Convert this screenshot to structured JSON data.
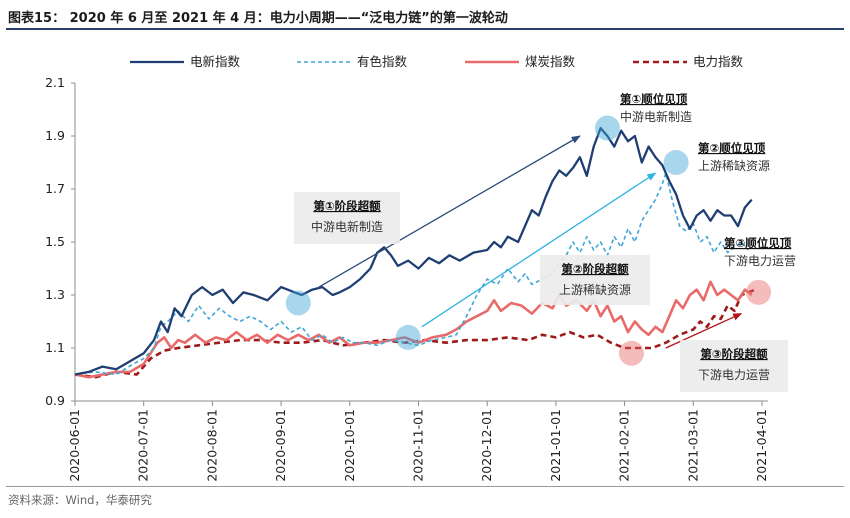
{
  "header": {
    "title": "图表15：  2020 年 6 月至 2021 年 4 月：电力小周期——“泛电力链”的第一波轮动"
  },
  "source": "资料来源：Wind，华泰研究",
  "colors": {
    "electric_new": "#1f3f73",
    "nonferrous": "#3fa7d6",
    "coal": "#e96a6a",
    "power": "#9e1b1b",
    "arrow_blue_dark": "#2d4b7a",
    "arrow_blue_light": "#2fb3e0",
    "arrow_red": "#b3121a"
  },
  "chart_data": {
    "type": "line",
    "title": "2020 年 6 月至 2021 年 4 月：电力小周期——“泛电力链”的第一波轮动",
    "xlabel": "",
    "ylabel": "",
    "ylim": [
      0.9,
      2.1
    ],
    "y_ticks": [
      "0.9",
      "1.1",
      "1.3",
      "1.5",
      "1.7",
      "1.9",
      "2.1"
    ],
    "x_ticks": [
      "2020-06-01",
      "2020-07-01",
      "2020-08-01",
      "2020-09-01",
      "2020-10-01",
      "2020-11-01",
      "2020-12-01",
      "2021-01-01",
      "2021-02-01",
      "2021-03-01",
      "2021-04-01"
    ],
    "legend_position": "top",
    "series": [
      {
        "name": "电新指数",
        "style": "solid",
        "color_key": "electric_new",
        "points": [
          [
            0.0,
            1.0
          ],
          [
            0.2,
            1.01
          ],
          [
            0.4,
            1.03
          ],
          [
            0.6,
            1.02
          ],
          [
            0.8,
            1.05
          ],
          [
            1.0,
            1.08
          ],
          [
            1.15,
            1.13
          ],
          [
            1.25,
            1.2
          ],
          [
            1.35,
            1.16
          ],
          [
            1.45,
            1.25
          ],
          [
            1.55,
            1.22
          ],
          [
            1.7,
            1.3
          ],
          [
            1.85,
            1.33
          ],
          [
            2.0,
            1.3
          ],
          [
            2.15,
            1.32
          ],
          [
            2.3,
            1.27
          ],
          [
            2.45,
            1.31
          ],
          [
            2.6,
            1.3
          ],
          [
            2.8,
            1.28
          ],
          [
            3.0,
            1.33
          ],
          [
            3.2,
            1.31
          ],
          [
            3.3,
            1.3
          ],
          [
            3.45,
            1.32
          ],
          [
            3.6,
            1.33
          ],
          [
            3.75,
            1.3
          ],
          [
            3.85,
            1.31
          ],
          [
            4.0,
            1.33
          ],
          [
            4.15,
            1.36
          ],
          [
            4.3,
            1.4
          ],
          [
            4.4,
            1.46
          ],
          [
            4.5,
            1.48
          ],
          [
            4.6,
            1.45
          ],
          [
            4.7,
            1.41
          ],
          [
            4.85,
            1.43
          ],
          [
            5.0,
            1.4
          ],
          [
            5.15,
            1.44
          ],
          [
            5.3,
            1.42
          ],
          [
            5.45,
            1.45
          ],
          [
            5.6,
            1.43
          ],
          [
            5.8,
            1.46
          ],
          [
            6.0,
            1.47
          ],
          [
            6.1,
            1.5
          ],
          [
            6.2,
            1.48
          ],
          [
            6.3,
            1.52
          ],
          [
            6.45,
            1.5
          ],
          [
            6.55,
            1.56
          ],
          [
            6.65,
            1.62
          ],
          [
            6.75,
            1.6
          ],
          [
            6.85,
            1.67
          ],
          [
            6.95,
            1.73
          ],
          [
            7.05,
            1.77
          ],
          [
            7.15,
            1.75
          ],
          [
            7.25,
            1.78
          ],
          [
            7.35,
            1.82
          ],
          [
            7.45,
            1.75
          ],
          [
            7.55,
            1.86
          ],
          [
            7.65,
            1.93
          ],
          [
            7.75,
            1.9
          ],
          [
            7.85,
            1.86
          ],
          [
            7.95,
            1.92
          ],
          [
            8.05,
            1.88
          ],
          [
            8.15,
            1.9
          ],
          [
            8.25,
            1.8
          ],
          [
            8.35,
            1.86
          ],
          [
            8.45,
            1.82
          ],
          [
            8.55,
            1.79
          ],
          [
            8.65,
            1.73
          ],
          [
            8.75,
            1.68
          ],
          [
            8.85,
            1.6
          ],
          [
            8.95,
            1.55
          ],
          [
            9.05,
            1.6
          ],
          [
            9.15,
            1.62
          ],
          [
            9.25,
            1.58
          ],
          [
            9.35,
            1.62
          ],
          [
            9.45,
            1.6
          ],
          [
            9.55,
            1.6
          ],
          [
            9.65,
            1.56
          ],
          [
            9.75,
            1.63
          ],
          [
            9.85,
            1.66
          ]
        ]
      },
      {
        "name": "有色指数",
        "style": "dashed",
        "color_key": "nonferrous",
        "points": [
          [
            0.0,
            1.0
          ],
          [
            0.3,
            1.01
          ],
          [
            0.6,
            1.0
          ],
          [
            0.85,
            1.04
          ],
          [
            1.0,
            1.06
          ],
          [
            1.15,
            1.1
          ],
          [
            1.25,
            1.18
          ],
          [
            1.35,
            1.2
          ],
          [
            1.5,
            1.24
          ],
          [
            1.65,
            1.2
          ],
          [
            1.8,
            1.26
          ],
          [
            1.95,
            1.21
          ],
          [
            2.1,
            1.25
          ],
          [
            2.25,
            1.22
          ],
          [
            2.4,
            1.2
          ],
          [
            2.55,
            1.22
          ],
          [
            2.7,
            1.2
          ],
          [
            2.85,
            1.17
          ],
          [
            3.0,
            1.2
          ],
          [
            3.15,
            1.16
          ],
          [
            3.3,
            1.18
          ],
          [
            3.45,
            1.13
          ],
          [
            3.6,
            1.15
          ],
          [
            3.75,
            1.12
          ],
          [
            3.9,
            1.14
          ],
          [
            4.05,
            1.12
          ],
          [
            4.2,
            1.12
          ],
          [
            4.4,
            1.11
          ],
          [
            4.6,
            1.13
          ],
          [
            4.8,
            1.12
          ],
          [
            5.0,
            1.11
          ],
          [
            5.2,
            1.13
          ],
          [
            5.4,
            1.14
          ],
          [
            5.55,
            1.15
          ],
          [
            5.7,
            1.22
          ],
          [
            5.85,
            1.3
          ],
          [
            6.0,
            1.36
          ],
          [
            6.15,
            1.34
          ],
          [
            6.3,
            1.4
          ],
          [
            6.45,
            1.35
          ],
          [
            6.55,
            1.38
          ],
          [
            6.65,
            1.34
          ],
          [
            6.8,
            1.36
          ],
          [
            6.95,
            1.38
          ],
          [
            7.05,
            1.42
          ],
          [
            7.15,
            1.45
          ],
          [
            7.25,
            1.5
          ],
          [
            7.35,
            1.46
          ],
          [
            7.45,
            1.52
          ],
          [
            7.55,
            1.47
          ],
          [
            7.65,
            1.5
          ],
          [
            7.75,
            1.45
          ],
          [
            7.85,
            1.52
          ],
          [
            7.95,
            1.48
          ],
          [
            8.05,
            1.55
          ],
          [
            8.15,
            1.5
          ],
          [
            8.25,
            1.58
          ],
          [
            8.35,
            1.62
          ],
          [
            8.45,
            1.66
          ],
          [
            8.55,
            1.72
          ],
          [
            8.6,
            1.76
          ],
          [
            8.7,
            1.65
          ],
          [
            8.8,
            1.56
          ],
          [
            8.9,
            1.54
          ],
          [
            9.0,
            1.57
          ],
          [
            9.1,
            1.5
          ],
          [
            9.2,
            1.52
          ],
          [
            9.3,
            1.46
          ],
          [
            9.4,
            1.5
          ],
          [
            9.5,
            1.46
          ],
          [
            9.6,
            1.48
          ],
          [
            9.7,
            1.5
          ],
          [
            9.8,
            1.47
          ]
        ]
      },
      {
        "name": "煤炭指数",
        "style": "solid",
        "color_key": "coal",
        "points": [
          [
            0.0,
            1.0
          ],
          [
            0.2,
            0.99
          ],
          [
            0.4,
            1.0
          ],
          [
            0.6,
            1.01
          ],
          [
            0.8,
            1.01
          ],
          [
            1.0,
            1.04
          ],
          [
            1.1,
            1.08
          ],
          [
            1.2,
            1.12
          ],
          [
            1.3,
            1.14
          ],
          [
            1.4,
            1.1
          ],
          [
            1.5,
            1.13
          ],
          [
            1.6,
            1.12
          ],
          [
            1.75,
            1.15
          ],
          [
            1.9,
            1.12
          ],
          [
            2.05,
            1.14
          ],
          [
            2.2,
            1.13
          ],
          [
            2.35,
            1.16
          ],
          [
            2.5,
            1.13
          ],
          [
            2.65,
            1.15
          ],
          [
            2.8,
            1.12
          ],
          [
            2.95,
            1.15
          ],
          [
            3.1,
            1.13
          ],
          [
            3.25,
            1.15
          ],
          [
            3.4,
            1.13
          ],
          [
            3.55,
            1.15
          ],
          [
            3.7,
            1.12
          ],
          [
            3.85,
            1.14
          ],
          [
            4.0,
            1.11
          ],
          [
            4.2,
            1.12
          ],
          [
            4.4,
            1.12
          ],
          [
            4.6,
            1.13
          ],
          [
            4.8,
            1.14
          ],
          [
            5.0,
            1.12
          ],
          [
            5.2,
            1.14
          ],
          [
            5.4,
            1.15
          ],
          [
            5.55,
            1.17
          ],
          [
            5.7,
            1.2
          ],
          [
            5.85,
            1.22
          ],
          [
            6.0,
            1.24
          ],
          [
            6.1,
            1.28
          ],
          [
            6.2,
            1.24
          ],
          [
            6.35,
            1.27
          ],
          [
            6.5,
            1.26
          ],
          [
            6.65,
            1.23
          ],
          [
            6.8,
            1.27
          ],
          [
            6.95,
            1.25
          ],
          [
            7.05,
            1.3
          ],
          [
            7.15,
            1.26
          ],
          [
            7.3,
            1.28
          ],
          [
            7.45,
            1.24
          ],
          [
            7.55,
            1.28
          ],
          [
            7.65,
            1.22
          ],
          [
            7.75,
            1.26
          ],
          [
            7.85,
            1.2
          ],
          [
            7.95,
            1.22
          ],
          [
            8.05,
            1.16
          ],
          [
            8.15,
            1.2
          ],
          [
            8.25,
            1.17
          ],
          [
            8.35,
            1.15
          ],
          [
            8.45,
            1.18
          ],
          [
            8.55,
            1.16
          ],
          [
            8.65,
            1.22
          ],
          [
            8.75,
            1.28
          ],
          [
            8.85,
            1.25
          ],
          [
            8.95,
            1.3
          ],
          [
            9.05,
            1.32
          ],
          [
            9.15,
            1.28
          ],
          [
            9.25,
            1.35
          ],
          [
            9.35,
            1.3
          ],
          [
            9.45,
            1.32
          ],
          [
            9.55,
            1.3
          ],
          [
            9.65,
            1.28
          ],
          [
            9.75,
            1.32
          ],
          [
            9.85,
            1.3
          ]
        ]
      },
      {
        "name": "电力指数",
        "style": "dashed",
        "color_key": "power",
        "points": [
          [
            0.0,
            1.0
          ],
          [
            0.3,
            0.99
          ],
          [
            0.6,
            1.01
          ],
          [
            0.9,
            1.0
          ],
          [
            1.1,
            1.06
          ],
          [
            1.3,
            1.09
          ],
          [
            1.5,
            1.1
          ],
          [
            1.8,
            1.11
          ],
          [
            2.1,
            1.12
          ],
          [
            2.4,
            1.13
          ],
          [
            2.7,
            1.13
          ],
          [
            3.0,
            1.12
          ],
          [
            3.3,
            1.12
          ],
          [
            3.6,
            1.13
          ],
          [
            3.9,
            1.11
          ],
          [
            4.2,
            1.12
          ],
          [
            4.5,
            1.13
          ],
          [
            4.8,
            1.12
          ],
          [
            5.1,
            1.13
          ],
          [
            5.4,
            1.12
          ],
          [
            5.7,
            1.13
          ],
          [
            6.0,
            1.13
          ],
          [
            6.3,
            1.14
          ],
          [
            6.6,
            1.13
          ],
          [
            6.8,
            1.15
          ],
          [
            7.0,
            1.14
          ],
          [
            7.2,
            1.16
          ],
          [
            7.4,
            1.14
          ],
          [
            7.6,
            1.15
          ],
          [
            7.8,
            1.12
          ],
          [
            8.0,
            1.1
          ],
          [
            8.2,
            1.1
          ],
          [
            8.4,
            1.1
          ],
          [
            8.6,
            1.12
          ],
          [
            8.8,
            1.15
          ],
          [
            9.0,
            1.17
          ],
          [
            9.1,
            1.2
          ],
          [
            9.2,
            1.18
          ],
          [
            9.3,
            1.22
          ],
          [
            9.4,
            1.21
          ],
          [
            9.5,
            1.26
          ],
          [
            9.6,
            1.24
          ],
          [
            9.7,
            1.3
          ],
          [
            9.8,
            1.31
          ],
          [
            9.9,
            1.32
          ]
        ]
      }
    ],
    "annotations": [
      {
        "title": "第①顺位见顶",
        "subtitle": "中游电新制造",
        "target": [
          7.75,
          1.93
        ],
        "circle_color_key": "nonferrous"
      },
      {
        "title": "第②顺位见顶",
        "subtitle": "上游稀缺资源",
        "target": [
          8.75,
          1.8
        ],
        "circle_color_key": "nonferrous"
      },
      {
        "title": "第③顺位见顶",
        "subtitle": "下游电力运营",
        "target": [
          9.95,
          1.31
        ],
        "circle_color_key": "coal"
      },
      {
        "title": "第①阶段超额",
        "subtitle": "中游电新制造",
        "target": [
          3.25,
          1.27
        ],
        "circle_color_key": "nonferrous"
      },
      {
        "title": "第②阶段超额",
        "subtitle": "上游稀缺资源",
        "target": [
          4.85,
          1.14
        ],
        "circle_color_key": "nonferrous"
      },
      {
        "title": "第③阶段超额",
        "subtitle": "下游电力运营",
        "target": [
          8.1,
          1.08
        ],
        "circle_color_key": "coal"
      }
    ],
    "trend_arrows": [
      {
        "from": [
          3.55,
          1.33
        ],
        "to": [
          7.35,
          1.9
        ],
        "color_key": "arrow_blue_dark"
      },
      {
        "from": [
          5.05,
          1.18
        ],
        "to": [
          8.45,
          1.76
        ],
        "color_key": "arrow_blue_light"
      },
      {
        "from": [
          8.6,
          1.1
        ],
        "to": [
          9.7,
          1.23
        ],
        "color_key": "arrow_red"
      }
    ]
  }
}
